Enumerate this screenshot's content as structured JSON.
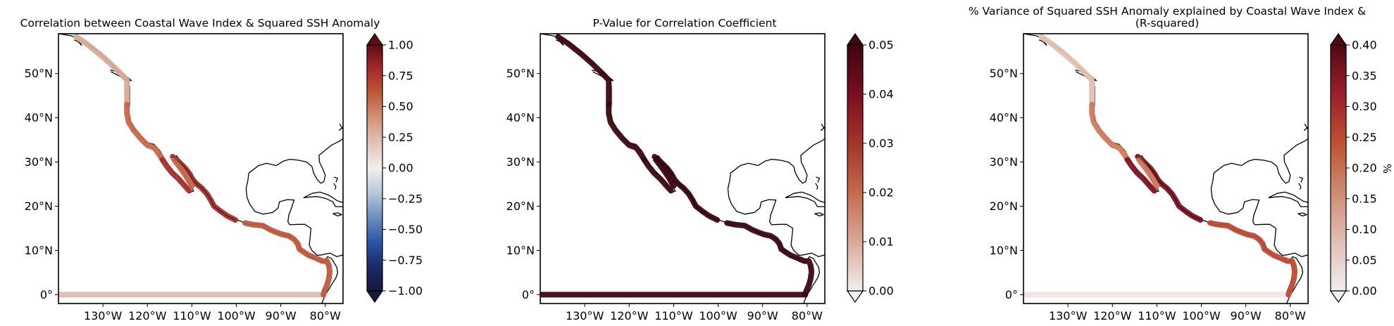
{
  "panels": [
    {
      "title_lines": [
        "Correlation between Coastal Wave Index & Squared SSH Anomaly"
      ],
      "colorbar": {
        "ticks": [
          "1.00",
          "0.75",
          "0.50",
          "0.25",
          "0.00",
          "−0.25",
          "−0.50",
          "−0.75",
          "−1.00"
        ],
        "label": "",
        "stops": [
          "#f2efee",
          "#e3c3b6",
          "#d2957a",
          "#bf5b39",
          "#a52b28",
          "#5e0b16"
        ],
        "neg_stops": [
          "#f2efee",
          "#b9c8d8",
          "#6f8ebf",
          "#2b55a8",
          "#1a2a6b",
          "#151a3a"
        ],
        "extend": "both"
      },
      "tracks": {
        "equator": "#dcbcb0",
        "north": "#d8aa98",
        "mid": "#c4684a",
        "south": "#a2302c",
        "central": "#bd5a3c"
      }
    },
    {
      "title_lines": [
        "P-Value for Correlation Coefficient"
      ],
      "colorbar": {
        "ticks": [
          "0.05",
          "0.04",
          "0.03",
          "0.02",
          "0.01",
          "0.00"
        ],
        "label": "",
        "stops": [
          "#f2efee",
          "#d9a896",
          "#c46b4c",
          "#a4342a",
          "#7b0c1f",
          "#3c0710"
        ],
        "extend": "both"
      },
      "tracks": {
        "equator": "#3c0710",
        "north": "#3c0710",
        "mid": "#3c0710",
        "south": "#3c0710",
        "central": "#3c0710"
      }
    },
    {
      "title_lines": [
        "% Variance of Squared SSH Anomaly explained by Coastal Wave Index &",
        "(R-squared)"
      ],
      "colorbar": {
        "ticks": [
          "0.40",
          "0.35",
          "0.30",
          "0.25",
          "0.20",
          "0.15",
          "0.10",
          "0.05",
          "0.00"
        ],
        "label": "%",
        "stops": [
          "#f2efee",
          "#e0bfb4",
          "#cf8c72",
          "#bd5233",
          "#9a1f2a",
          "#4e0a14"
        ],
        "extend": "both"
      },
      "tracks": {
        "equator": "#efe5e2",
        "north": "#e2c0b3",
        "mid": "#cf7a5c",
        "south": "#7d1424",
        "central": "#bb4a36"
      }
    }
  ],
  "map": {
    "lat_labels": [
      "50°N",
      "40°N",
      "30°N",
      "20°N",
      "10°N",
      "0°"
    ],
    "lat_values": [
      50,
      40,
      30,
      20,
      10,
      0
    ],
    "lon_labels": [
      "130°W",
      "120°W",
      "110°W",
      "100°W",
      "90°W",
      "80°W"
    ],
    "lon_values": [
      -130,
      -120,
      -110,
      -100,
      -90,
      -80
    ],
    "lon_range": [
      -140,
      -76
    ],
    "lat_range": [
      -2,
      59
    ]
  }
}
